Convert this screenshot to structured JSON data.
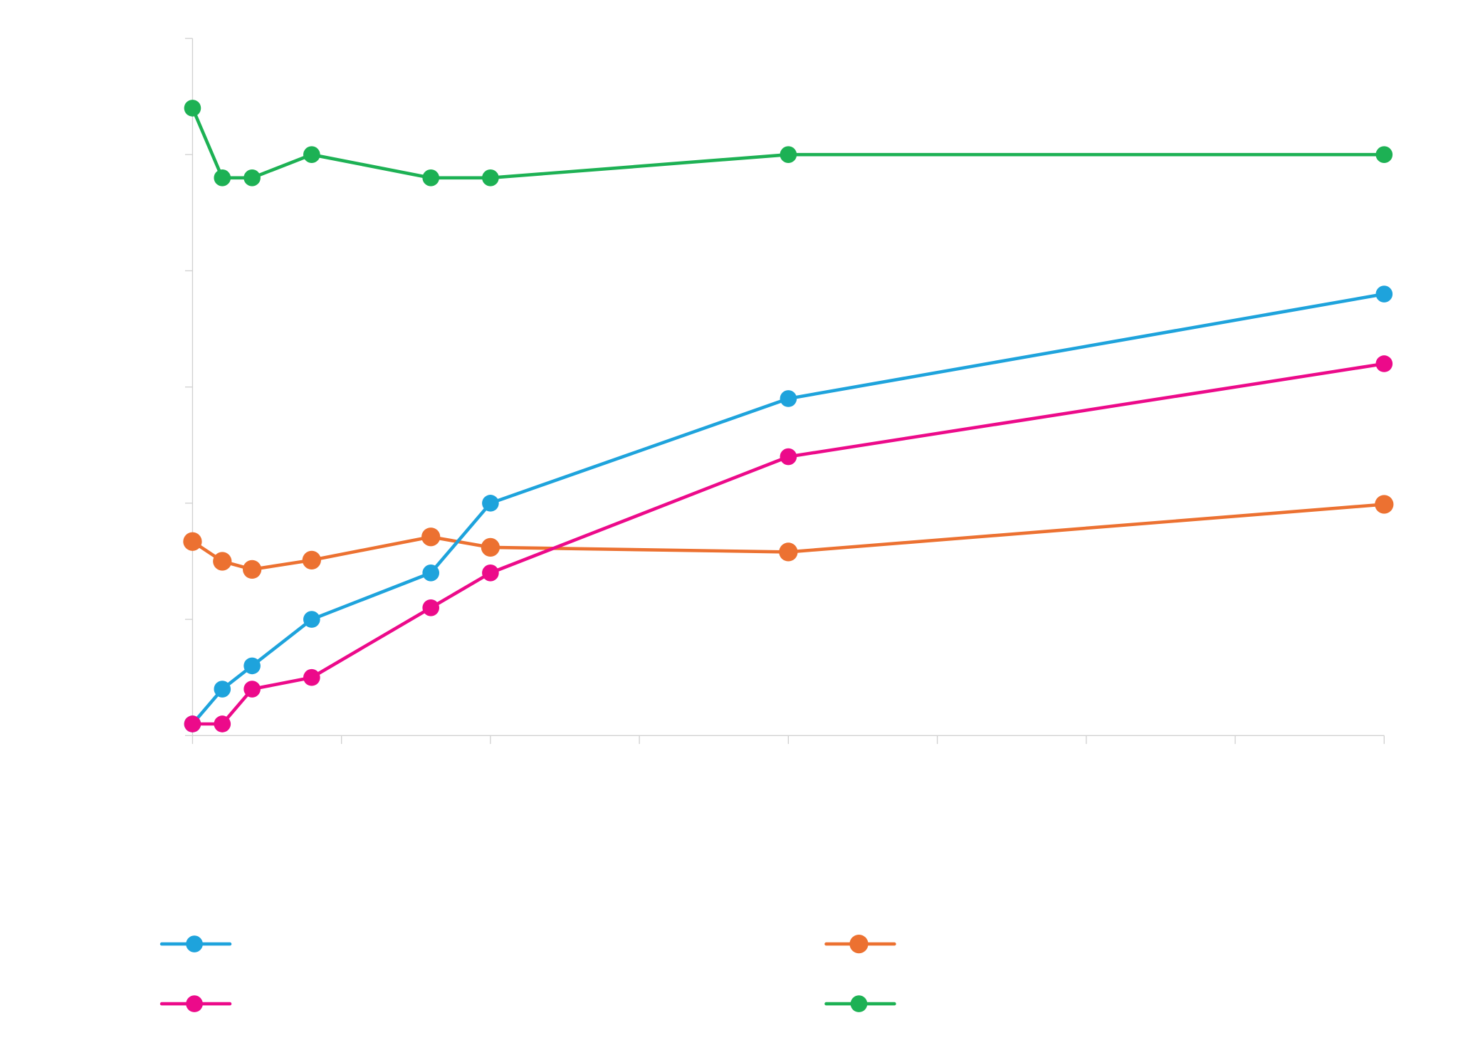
{
  "chart_data": {
    "type": "line",
    "title": "",
    "xlabel": "",
    "ylabel": "",
    "xlim": [
      0,
      8
    ],
    "ylim": [
      0,
      6
    ],
    "x_ticks": [
      0,
      1,
      2,
      3,
      4,
      5,
      6,
      7,
      8
    ],
    "y_ticks": [
      0,
      1,
      2,
      3,
      4,
      5,
      6
    ],
    "tick_labels_shown": false,
    "grid": false,
    "legend_position": "bottom",
    "x": [
      0,
      0.2,
      0.4,
      0.8,
      1.6,
      2.0,
      4.0,
      8.0
    ],
    "series": [
      {
        "color": "#1ea3dc",
        "values": [
          0.1,
          0.4,
          0.6,
          1.0,
          1.4,
          2.0,
          2.9,
          3.8
        ]
      },
      {
        "color": "#ec7131",
        "values": [
          1.67,
          1.5,
          1.43,
          1.51,
          1.71,
          1.62,
          1.58,
          1.99
        ]
      },
      {
        "color": "#ec0a8a",
        "values": [
          0.1,
          0.1,
          0.4,
          0.5,
          1.1,
          1.4,
          2.4,
          3.2
        ]
      },
      {
        "color": "#1db154",
        "values": [
          5.4,
          4.8,
          4.8,
          5.0,
          4.8,
          4.8,
          5.0,
          5.0
        ]
      }
    ]
  }
}
